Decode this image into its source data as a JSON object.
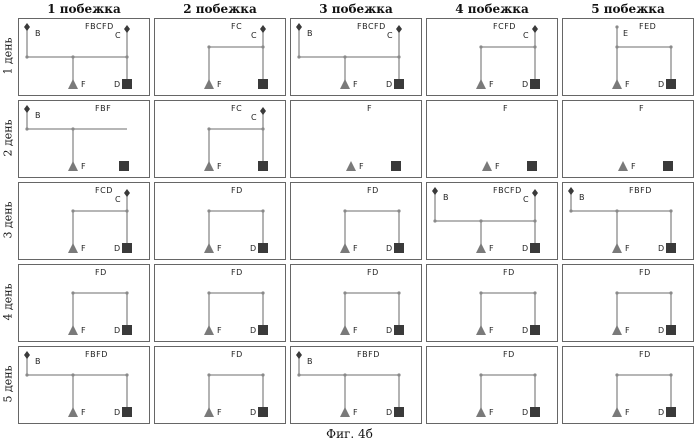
{
  "columns": [
    "1 побежка",
    "2 побежка",
    "3 побежка",
    "4 побежка",
    "5 побежка"
  ],
  "rows": [
    "1 день",
    "2 день",
    "3 день",
    "4 день",
    "5 день"
  ],
  "caption": "Фиг. 4б",
  "colors": {
    "line": "#8a8a8a",
    "marker": "#3a3a3a",
    "triangle": "#7a7a7a"
  },
  "panels": [
    [
      {
        "code": "FBCFD",
        "labels": [
          "B",
          "C",
          "F",
          "D"
        ],
        "nodes": [
          "B",
          "C"
        ]
      },
      {
        "code": "FC",
        "labels": [
          "C",
          "F"
        ],
        "nodes": [
          "C"
        ]
      },
      {
        "code": "FBCFD",
        "labels": [
          "B",
          "C",
          "F",
          "D"
        ],
        "nodes": [
          "B",
          "C"
        ]
      },
      {
        "code": "FCFD",
        "labels": [
          "C",
          "F",
          "D"
        ],
        "nodes": [
          "C"
        ]
      },
      {
        "code": "FED",
        "labels": [
          "E",
          "F",
          "D"
        ],
        "nodes": [
          "E"
        ]
      }
    ],
    [
      {
        "code": "FBF",
        "labels": [
          "B",
          "F"
        ],
        "nodes": [
          "B"
        ]
      },
      {
        "code": "FC",
        "labels": [
          "C",
          "F"
        ],
        "nodes": [
          "C"
        ]
      },
      {
        "code": "F",
        "labels": [
          "F"
        ],
        "nodes": []
      },
      {
        "code": "F",
        "labels": [
          "F"
        ],
        "nodes": []
      },
      {
        "code": "F",
        "labels": [
          "F"
        ],
        "nodes": []
      }
    ],
    [
      {
        "code": "FCD",
        "labels": [
          "C",
          "F",
          "D"
        ],
        "nodes": [
          "C"
        ]
      },
      {
        "code": "FD",
        "labels": [
          "F",
          "D"
        ],
        "nodes": []
      },
      {
        "code": "FD",
        "labels": [
          "F",
          "D"
        ],
        "nodes": []
      },
      {
        "code": "FBCFD",
        "labels": [
          "B",
          "C",
          "F",
          "D"
        ],
        "nodes": [
          "B",
          "C"
        ]
      },
      {
        "code": "FBFD",
        "labels": [
          "B",
          "F",
          "D"
        ],
        "nodes": [
          "B"
        ]
      }
    ],
    [
      {
        "code": "FD",
        "labels": [
          "F",
          "D"
        ],
        "nodes": []
      },
      {
        "code": "FD",
        "labels": [
          "F",
          "D"
        ],
        "nodes": []
      },
      {
        "code": "FD",
        "labels": [
          "F",
          "D"
        ],
        "nodes": []
      },
      {
        "code": "FD",
        "labels": [
          "F",
          "D"
        ],
        "nodes": []
      },
      {
        "code": "FD",
        "labels": [
          "F",
          "D"
        ],
        "nodes": []
      }
    ],
    [
      {
        "code": "FBFD",
        "labels": [
          "B",
          "F",
          "D"
        ],
        "nodes": [
          "B"
        ]
      },
      {
        "code": "FD",
        "labels": [
          "F",
          "D"
        ],
        "nodes": []
      },
      {
        "code": "FBFD",
        "labels": [
          "B",
          "F",
          "D"
        ],
        "nodes": [
          "B"
        ]
      },
      {
        "code": "FD",
        "labels": [
          "F",
          "D"
        ],
        "nodes": []
      },
      {
        "code": "FD",
        "labels": [
          "F",
          "D"
        ],
        "nodes": []
      }
    ]
  ]
}
